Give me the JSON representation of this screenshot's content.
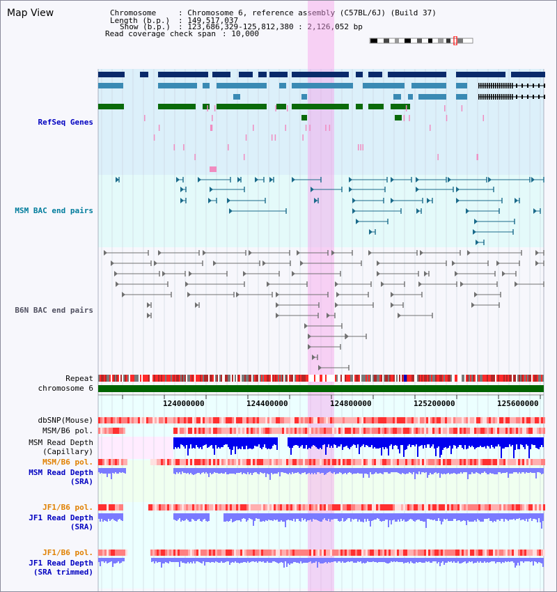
{
  "header": {
    "title": "Map View",
    "chromosome_key": "Chromosome",
    "chromosome_val": ": Chromosome 6, reference assembly (C57BL/6J) (Build 37)",
    "length_key": "Length (b.p.)",
    "length_val": ": 149,517,037",
    "show_key": "Show (b.p.)",
    "show_val": ": 123,686,329-125,812,380 : 2,126,052 bp",
    "coverage_key": "Read coverage check span",
    "coverage_val": ": 10,000"
  },
  "tracks": {
    "refseq": "RefSeq Genes",
    "msm_bac": "MSM BAC end pairs",
    "b6n_bac": "B6N BAC end pairs",
    "repeat": "Repeat",
    "chromosome": "chromosome 6",
    "dbsnp": "dbSNP(Mouse)",
    "msm_b6_pol_1": "MSM/B6 pol.",
    "msm_depth_cap_1": "MSM Read Depth",
    "msm_depth_cap_2": "(Capillary)",
    "msm_b6_pol_2": "MSM/B6 pol.",
    "msm_depth_sra_1": "MSM Read Depth",
    "msm_depth_sra_2": "(SRA)",
    "jf1_b6_pol_1": "JF1/B6 pol.",
    "jf1_depth_sra_1": "JF1 Read Depth",
    "jf1_depth_sra_2": "(SRA)",
    "jf1_b6_pol_2": "JF1/B6 pol.",
    "jf1_depth_trim_1": "JF1 Read Depth",
    "jf1_depth_trim_2": "(SRA trimmed)"
  },
  "axis": {
    "ticks": [
      "124000000",
      "124400000",
      "124800000",
      "125200000",
      "125600000"
    ]
  },
  "colors": {
    "highlight": "#f7c8f0",
    "refseq_bg": "#dcf0fa",
    "msm_bg": "#e4fafa",
    "gene_dark": "#0a2a6a",
    "gene_mid": "#3a8ab4",
    "gene_green": "#0a6a0a",
    "gene_pink": "#f08cc0",
    "msm_bac": "#1a6a8a",
    "b6n_bac": "#707070",
    "chromosome": "#006400",
    "depth_dark": "#0000ee",
    "depth_light": "#7a7aff",
    "pol_red": "#ff3030"
  }
}
